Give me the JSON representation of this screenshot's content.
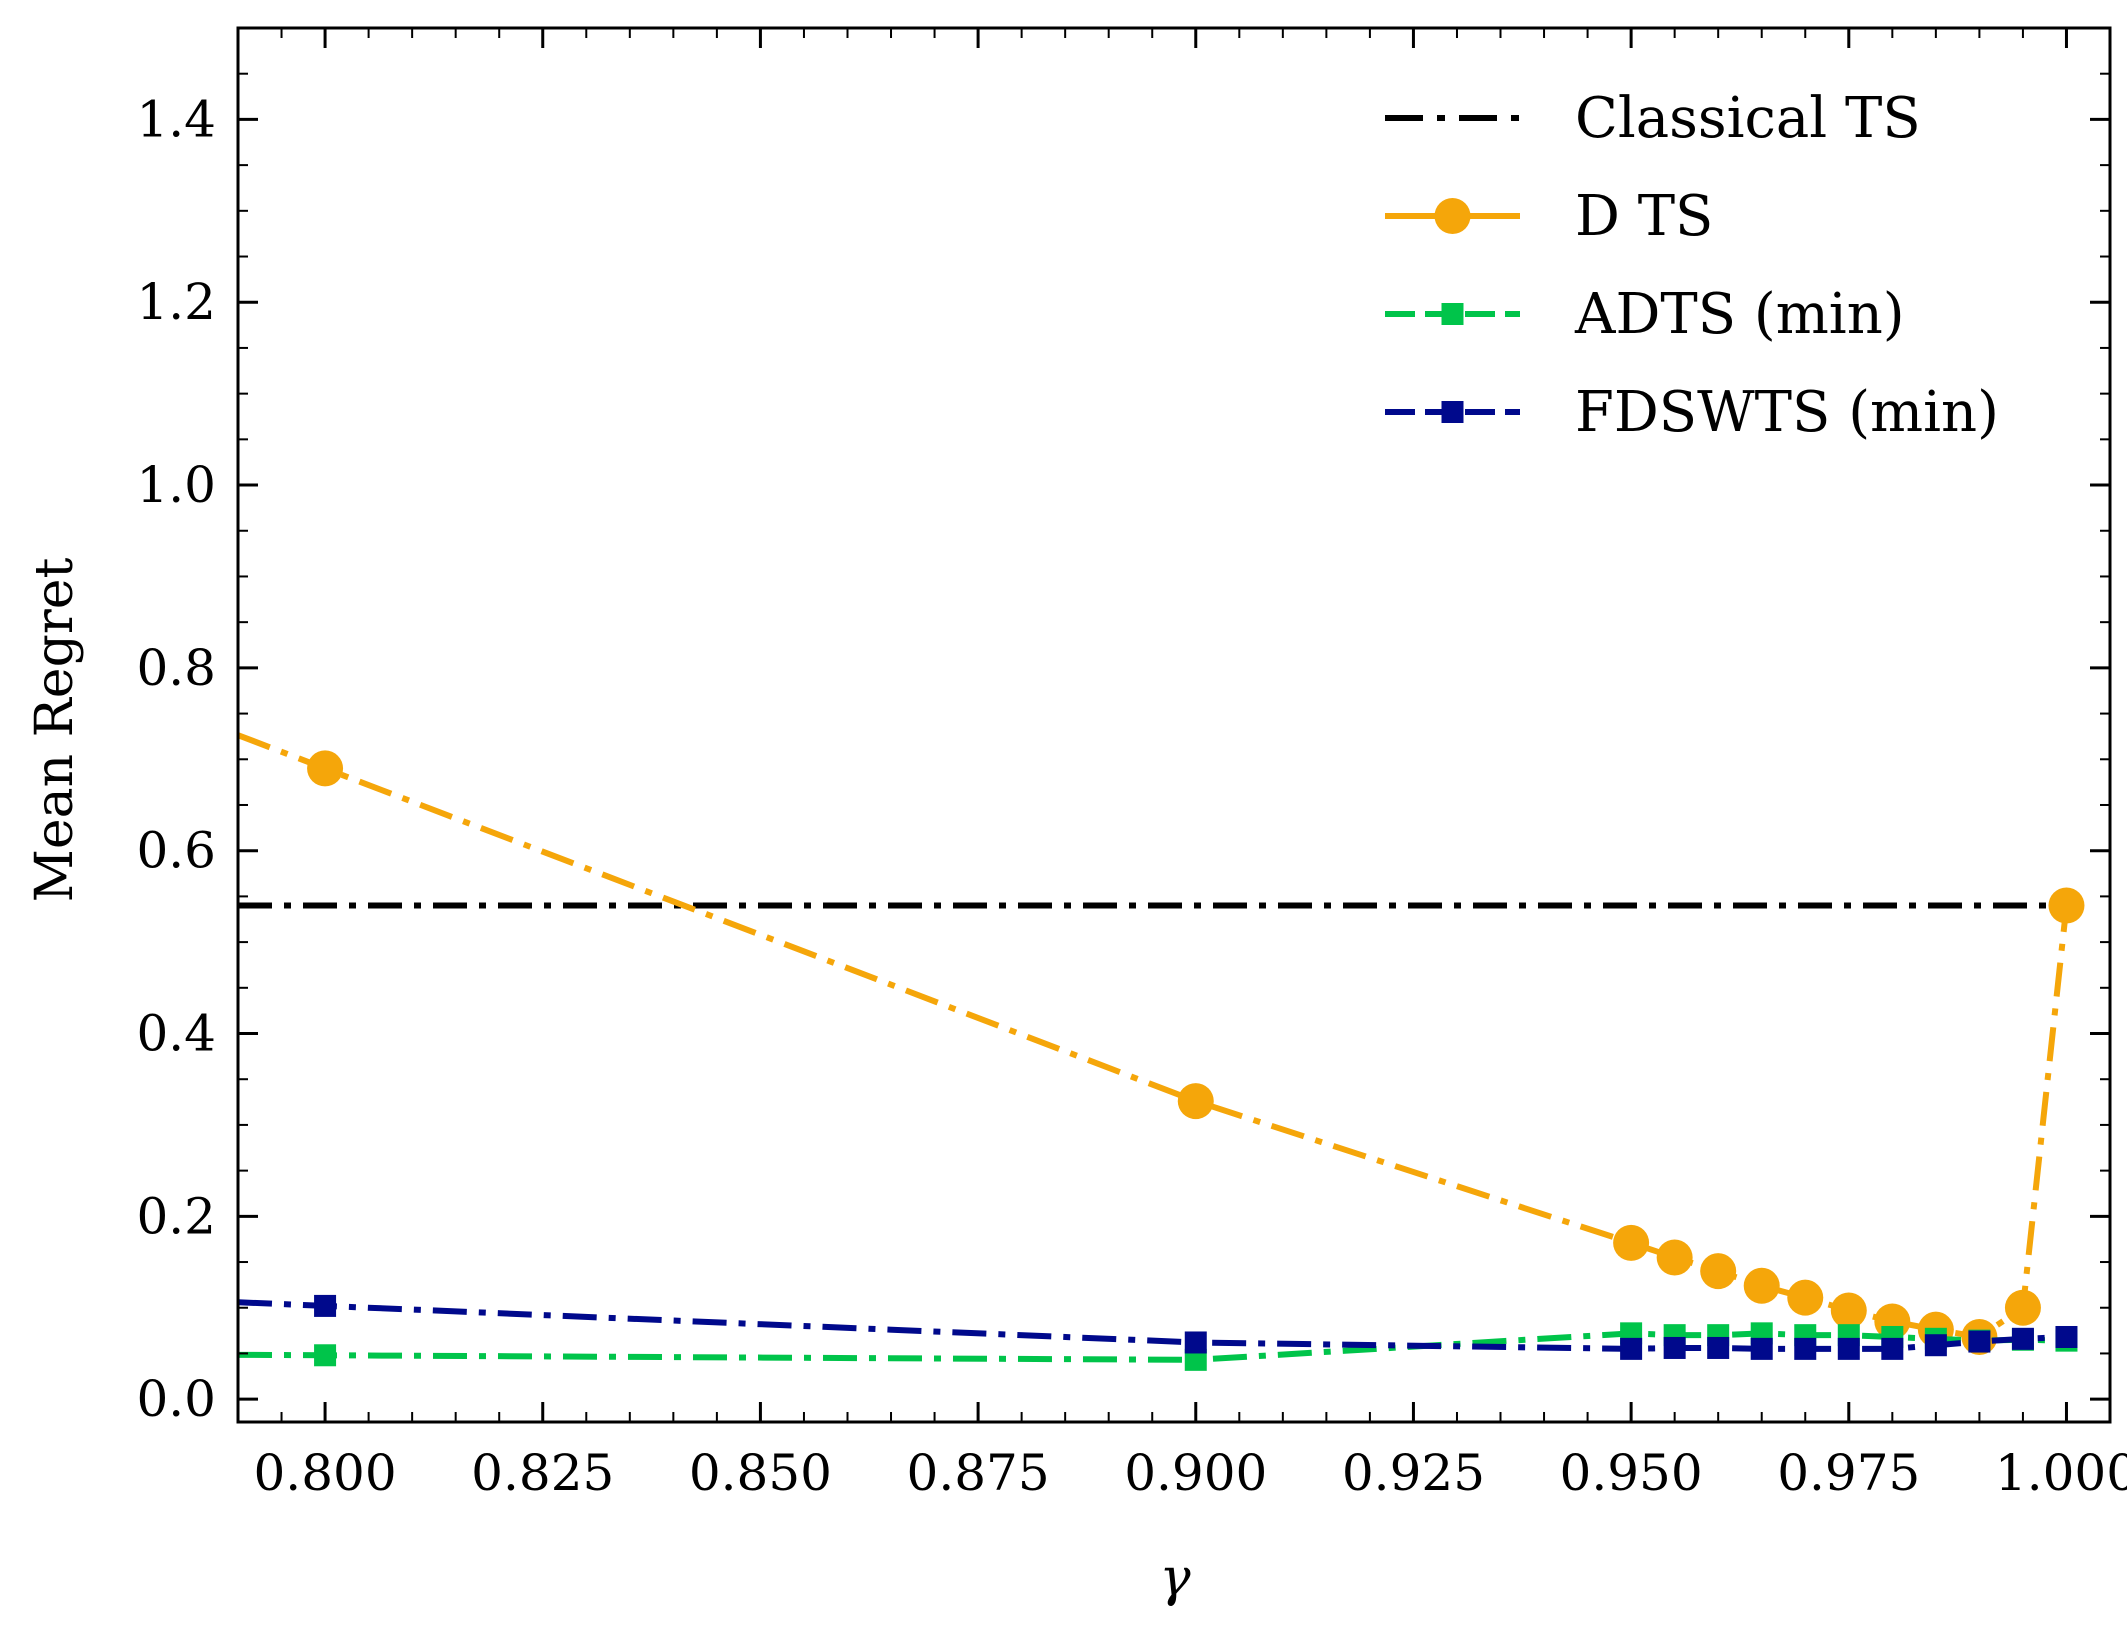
{
  "chart_data": {
    "type": "line",
    "xlabel": "γ",
    "ylabel": "Mean Regret",
    "xlim": [
      0.79,
      1.005
    ],
    "ylim": [
      -0.025,
      1.5
    ],
    "xticks": [
      0.8,
      0.825,
      0.85,
      0.875,
      0.9,
      0.925,
      0.95,
      0.975,
      1.0
    ],
    "xtick_labels": [
      "0.800",
      "0.825",
      "0.850",
      "0.875",
      "0.900",
      "0.925",
      "0.950",
      "0.975",
      "1.000"
    ],
    "yticks": [
      0.0,
      0.2,
      0.4,
      0.6,
      0.8,
      1.0,
      1.2,
      1.4
    ],
    "ytick_labels": [
      "0.0",
      "0.2",
      "0.4",
      "0.6",
      "0.8",
      "1.0",
      "1.2",
      "1.4"
    ],
    "grid": false,
    "legend_position": "top-right",
    "series": [
      {
        "name": "Classical TS",
        "color": "#000000",
        "marker": "none",
        "linestyle": "dashdot",
        "x": [
          0.79,
          1.0
        ],
        "y": [
          0.54,
          0.54
        ]
      },
      {
        "name": "D TS",
        "color": "#f5a60a",
        "marker": "circle",
        "linestyle": "dashdot",
        "line_extends_to_xmin": true,
        "x": [
          0.8,
          0.9,
          0.95,
          0.955,
          0.96,
          0.965,
          0.97,
          0.975,
          0.98,
          0.985,
          0.99,
          0.995,
          1.0
        ],
        "y": [
          0.69,
          0.326,
          0.171,
          0.155,
          0.14,
          0.124,
          0.111,
          0.097,
          0.085,
          0.076,
          0.068,
          0.1,
          0.54
        ]
      },
      {
        "name": "ADTS (min)",
        "color": "#00c44a",
        "marker": "square",
        "linestyle": "dashdot",
        "line_extends_to_xmin": true,
        "x": [
          0.8,
          0.9,
          0.95,
          0.955,
          0.96,
          0.965,
          0.97,
          0.975,
          0.98,
          0.985,
          0.99,
          0.995,
          1.0
        ],
        "y": [
          0.048,
          0.043,
          0.072,
          0.07,
          0.07,
          0.072,
          0.07,
          0.07,
          0.068,
          0.066,
          0.064,
          0.065,
          0.064
        ]
      },
      {
        "name": "FDSWTS (min)",
        "color": "#00098c",
        "marker": "square",
        "linestyle": "dashdot",
        "line_extends_to_xmin": true,
        "x": [
          0.8,
          0.9,
          0.95,
          0.955,
          0.96,
          0.965,
          0.97,
          0.975,
          0.98,
          0.985,
          0.99,
          0.995,
          1.0
        ],
        "y": [
          0.102,
          0.062,
          0.055,
          0.056,
          0.056,
          0.055,
          0.055,
          0.055,
          0.055,
          0.059,
          0.063,
          0.066,
          0.068
        ]
      }
    ]
  }
}
